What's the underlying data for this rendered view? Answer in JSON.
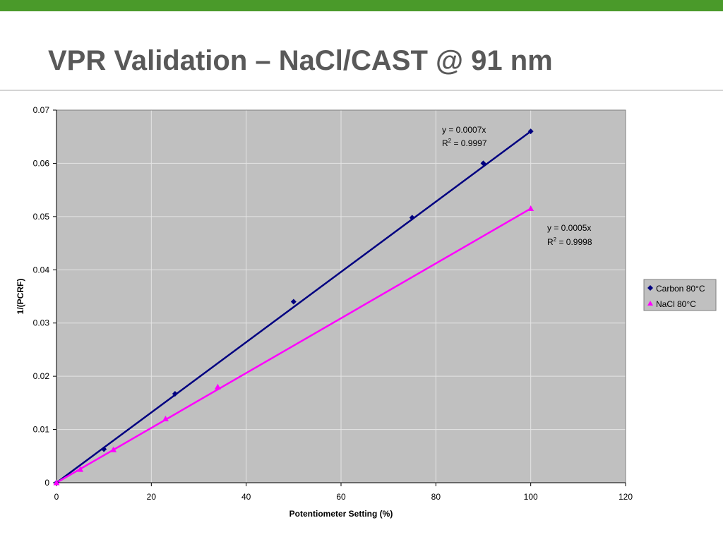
{
  "slide": {
    "title": "VPR Validation – NaCl/CAST @ 91 nm",
    "accent_color": "#4a9a2a"
  },
  "chart_data": {
    "type": "scatter",
    "title": "",
    "xlabel": "Potentiometer Setting (%)",
    "ylabel": "1/(PCRF)",
    "xlim": [
      0,
      120
    ],
    "ylim": [
      0,
      0.07
    ],
    "x_ticks": [
      0,
      20,
      40,
      60,
      80,
      100,
      120
    ],
    "y_ticks": [
      0,
      0.01,
      0.02,
      0.03,
      0.04,
      0.05,
      0.06,
      0.07
    ],
    "x_tick_labels": [
      "0",
      "20",
      "40",
      "60",
      "80",
      "100",
      "120"
    ],
    "y_tick_labels": [
      "0",
      "0.01",
      "0.02",
      "0.03",
      "0.04",
      "0.05",
      "0.06",
      "0.07"
    ],
    "grid": true,
    "plot_background": "#c0c0c0",
    "legend_position": "right",
    "series": [
      {
        "name": "Carbon 80°C",
        "marker": "diamond",
        "color": "#000080",
        "x": [
          0,
          10,
          25,
          50,
          75,
          90,
          100
        ],
        "y": [
          0,
          0.0063,
          0.0167,
          0.034,
          0.0498,
          0.06,
          0.066
        ],
        "trendline": {
          "slope": 0.00066,
          "x_end": 100,
          "equation": "y = 0.0007x",
          "r2_label": "R",
          "r2_superscript": "2",
          "r2_value": " = 0.9997"
        }
      },
      {
        "name": "NaCl 80°C",
        "marker": "triangle",
        "color": "#ff00ff",
        "x": [
          0,
          5,
          12,
          23,
          34,
          100
        ],
        "y": [
          0,
          0.0025,
          0.0062,
          0.012,
          0.018,
          0.0515
        ],
        "trendline": {
          "slope": 0.000515,
          "x_end": 100,
          "equation": "y = 0.0005x",
          "r2_label": "R",
          "r2_superscript": "2",
          "r2_value": " = 0.9998"
        }
      }
    ]
  }
}
